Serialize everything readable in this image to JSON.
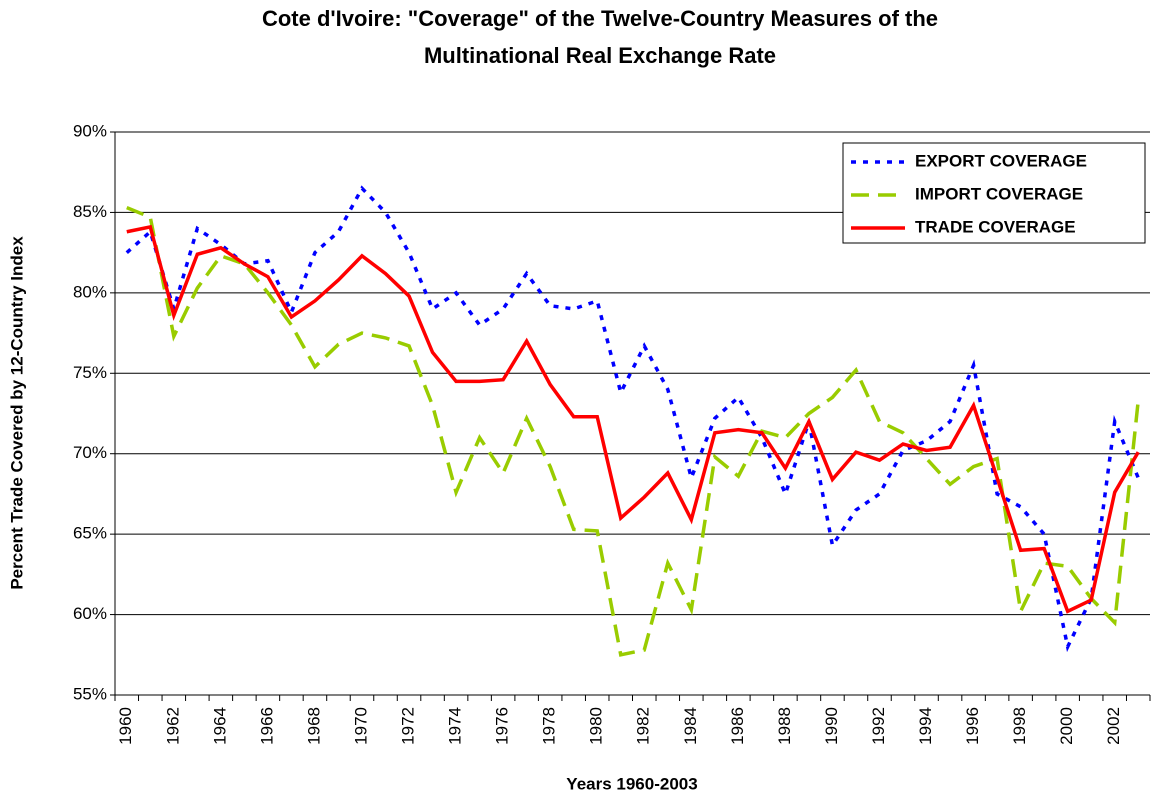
{
  "chart_data": {
    "type": "line",
    "title": [
      "Cote d'Ivoire: \"Coverage\" of the Twelve-Country Measures of the",
      "Multinational Real Exchange Rate"
    ],
    "x_label": "Years 1960-2003",
    "y_label": "Percent Trade Covered by 12-Country Index",
    "categories": [
      "1960",
      null,
      "1962",
      null,
      "1964",
      null,
      "1966",
      null,
      "1968",
      null,
      "1970",
      null,
      "1972",
      null,
      "1974",
      null,
      "1976",
      null,
      "1978",
      null,
      "1980",
      null,
      "1982",
      null,
      "1984",
      null,
      "1986",
      null,
      "1988",
      null,
      "1990",
      null,
      "1992",
      null,
      "1994",
      null,
      "1996",
      null,
      "1998",
      null,
      "2000",
      null,
      "2002",
      null
    ],
    "series": [
      {
        "name": "EXPORT COVERAGE",
        "color": "#0000ff",
        "line_style": "dotted",
        "values": [
          82.5,
          83.8,
          79,
          84,
          83,
          81.8,
          82,
          78.8,
          82.5,
          83.8,
          86.5,
          85,
          82.5,
          79,
          80,
          78,
          79,
          81.2,
          79.2,
          79,
          79.5,
          73.8,
          76.7,
          74,
          68.5,
          72.2,
          73.5,
          71,
          67.5,
          72,
          64.3,
          66.5,
          67.5,
          70.2,
          70.8,
          72,
          75.5,
          67.5,
          66.7,
          65,
          58,
          61,
          72,
          68.5
        ]
      },
      {
        "name": "IMPORT COVERAGE",
        "color": "#99cc00",
        "line_style": "dashed",
        "values": [
          85.3,
          84.7,
          77.3,
          80.3,
          82.3,
          81.8,
          80,
          78,
          75.4,
          76.8,
          77.5,
          77.2,
          76.7,
          73,
          67.6,
          71,
          68.8,
          72.2,
          69.2,
          65.3,
          65.2,
          57.5,
          57.8,
          63.2,
          60.3,
          69.8,
          68.6,
          71.4,
          71,
          72.5,
          73.5,
          75.2,
          72,
          71.3,
          69.7,
          68.1,
          69.2,
          69.7,
          60.2,
          63.2,
          63,
          61,
          59.5,
          73.3
        ]
      },
      {
        "name": "TRADE COVERAGE",
        "color": "#ff0000",
        "line_style": "solid",
        "values": [
          83.8,
          84.1,
          78.6,
          82.4,
          82.8,
          81.8,
          81,
          78.5,
          79.5,
          80.8,
          82.3,
          81.2,
          79.8,
          76.3,
          74.5,
          74.5,
          74.6,
          77,
          74.3,
          72.3,
          72.3,
          66,
          67.3,
          68.8,
          65.9,
          71.3,
          71.5,
          71.3,
          69.1,
          72,
          68.4,
          70.1,
          69.6,
          70.6,
          70.2,
          70.4,
          73,
          68.5,
          64,
          64.1,
          60.2,
          60.9,
          67.6,
          70.1
        ]
      }
    ],
    "ylim": [
      55,
      90
    ],
    "yticks": [
      {
        "value": 55,
        "label": "55%"
      },
      {
        "value": 60,
        "label": "60%"
      },
      {
        "value": 65,
        "label": "65%"
      },
      {
        "value": 70,
        "label": "70%"
      },
      {
        "value": 75,
        "label": "75%"
      },
      {
        "value": 80,
        "label": "80%"
      },
      {
        "value": 85,
        "label": "85%"
      },
      {
        "value": 90,
        "label": "90%"
      }
    ],
    "grid": true,
    "legend": "top-right"
  }
}
